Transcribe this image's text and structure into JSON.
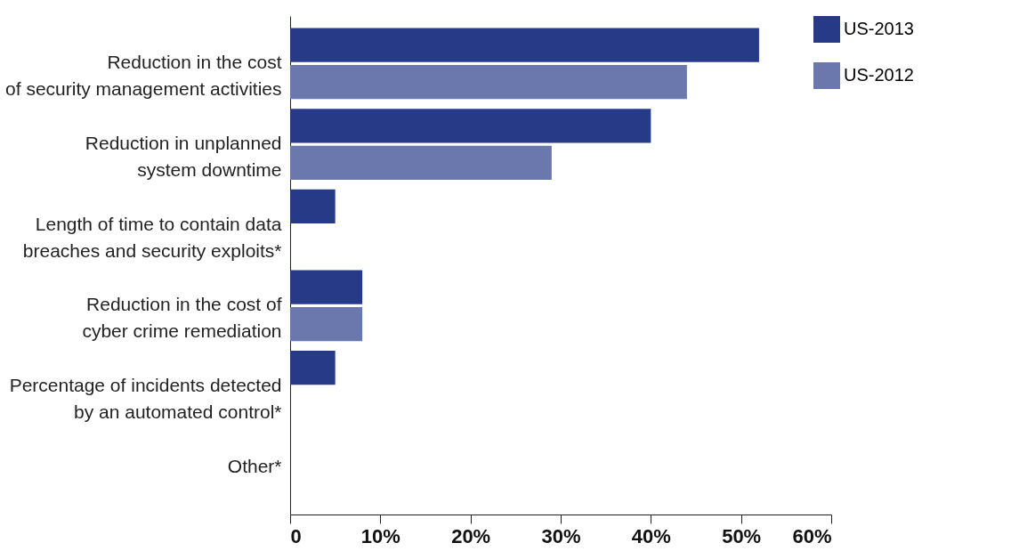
{
  "chart_data": {
    "type": "bar",
    "orientation": "horizontal",
    "categories": [
      "Reduction in the cost\nof security management activities",
      "Reduction in unplanned\nsystem downtime",
      "Length of time to contain data\nbreaches and security exploits*",
      "Reduction in the cost of\ncyber crime remediation",
      "Percentage of incidents detected\nby an automated control*",
      "Other*"
    ],
    "series": [
      {
        "name": "US-2013",
        "color": "#263a87",
        "values": [
          52,
          40,
          5,
          8,
          5,
          null
        ]
      },
      {
        "name": "US-2012",
        "color": "#6a78ad",
        "values": [
          44,
          29,
          null,
          8,
          null,
          null
        ]
      }
    ],
    "xlim": [
      0,
      60
    ],
    "xticks": [
      0,
      {
        "value": 10,
        "label": "10%"
      },
      {
        "value": 20,
        "label": "20%"
      },
      {
        "value": 30,
        "label": "30%"
      },
      {
        "value": 40,
        "label": "40%"
      },
      {
        "value": 50,
        "label": "50%"
      },
      {
        "value": 60,
        "label": "60%"
      }
    ],
    "grid": false,
    "legend": "top right"
  }
}
